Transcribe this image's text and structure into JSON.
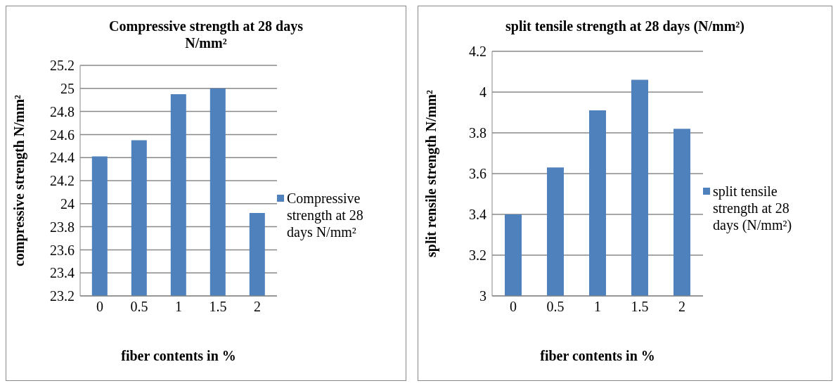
{
  "chart_data": [
    {
      "type": "bar",
      "title": "Compressive strength at 28 days N/mm²",
      "xlabel": "fiber contents in %",
      "ylabel": "compressive strength N/mm²",
      "categories": [
        "0",
        "0.5",
        "1",
        "1.5",
        "2"
      ],
      "series": [
        {
          "name": "Compressive strength at 28 days N/mm²",
          "color": "#4f81bd",
          "values": [
            24.41,
            24.55,
            24.95,
            25.0,
            23.92
          ]
        }
      ],
      "ylim": [
        23.2,
        25.2
      ],
      "yticks": [
        23.2,
        23.4,
        23.6,
        23.8,
        24,
        24.2,
        24.4,
        24.6,
        24.8,
        25,
        25.2
      ],
      "grid": "y",
      "legend": "right"
    },
    {
      "type": "bar",
      "title": "split tensile  strength at 28 days (N/mm²)",
      "xlabel": "fiber contents in %",
      "ylabel": "split rensile  strength  N/mm²",
      "categories": [
        "0",
        "0.5",
        "1",
        "1.5",
        "2"
      ],
      "series": [
        {
          "name": "split tensile strength at 28 days (N/mm²)",
          "color": "#4f81bd",
          "values": [
            3.4,
            3.63,
            3.91,
            4.06,
            3.82
          ]
        }
      ],
      "ylim": [
        3,
        4.2
      ],
      "yticks": [
        3,
        3.2,
        3.4,
        3.6,
        3.8,
        4,
        4.2
      ],
      "grid": "y",
      "legend": "right"
    }
  ]
}
